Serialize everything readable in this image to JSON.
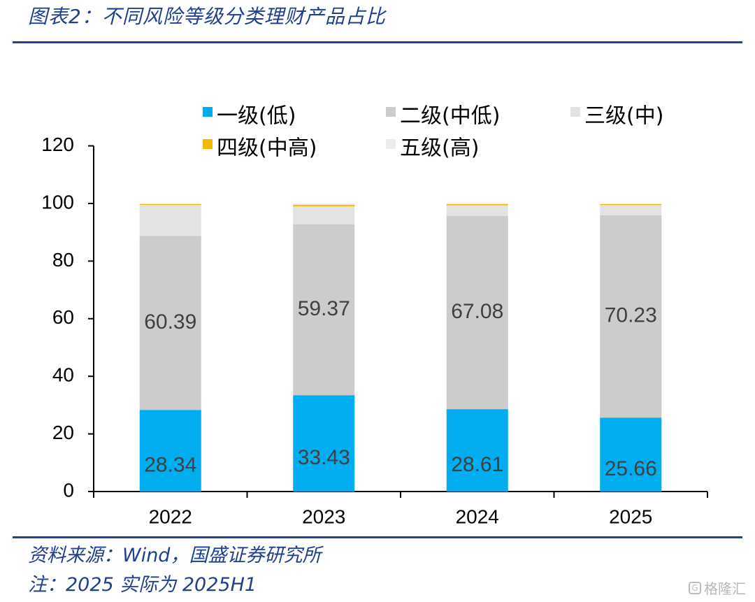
{
  "title": "图表2：不同风险等级分类理财产品占比",
  "source": "资料来源：Wind，国盛证券研究所",
  "note": "注：2025 实际为 2025H1",
  "watermark": "格隆汇",
  "watermark_icon": "g-logo-icon",
  "colors": {
    "accent": "#1f3f8f",
    "level1": "#00aeef",
    "level2": "#cccccc",
    "level3": "#e3e3e3",
    "level4": "#f5b800",
    "level5": "#ececec"
  },
  "chart_data": {
    "type": "bar",
    "stacked": true,
    "categories": [
      "2022",
      "2023",
      "2024",
      "2025"
    ],
    "ylim": [
      0,
      120
    ],
    "yticks": [
      0,
      20,
      40,
      60,
      80,
      100,
      120
    ],
    "legend_placement": "top",
    "grid": false,
    "series": [
      {
        "name": "一级(低)",
        "values": [
          28.34,
          33.43,
          28.61,
          25.66
        ],
        "labels": [
          "28.34",
          "33.43",
          "28.61",
          "25.66"
        ]
      },
      {
        "name": "二级(中低)",
        "values": [
          60.39,
          59.37,
          67.08,
          70.23
        ],
        "labels": [
          "60.39",
          "59.37",
          "67.08",
          "70.23"
        ]
      },
      {
        "name": "三级(中)",
        "values": [
          10.8,
          6.2,
          3.7,
          3.6
        ]
      },
      {
        "name": "四级(中高)",
        "values": [
          0.3,
          0.5,
          0.4,
          0.3
        ]
      },
      {
        "name": "五级(高)",
        "values": [
          0.17,
          0.5,
          0.21,
          0.21
        ]
      }
    ]
  }
}
